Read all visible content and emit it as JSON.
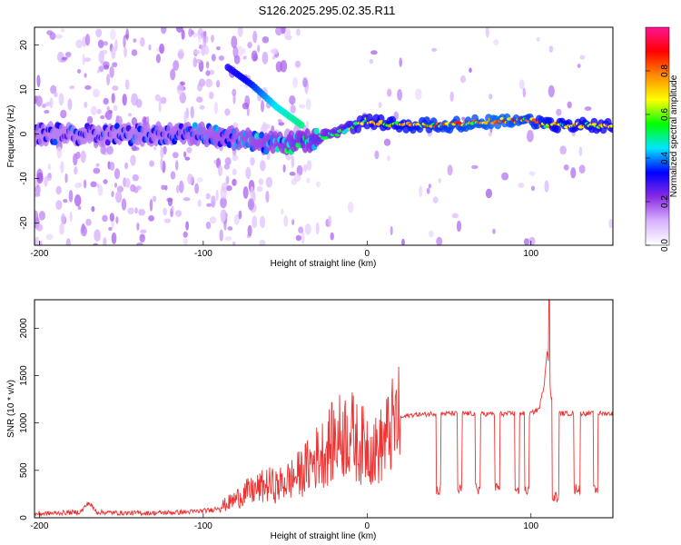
{
  "title": "S126.2025.295.02.35.R11",
  "chart_data": [
    {
      "type": "heatmap",
      "xlabel": "Height of straight line (km)",
      "ylabel": "Frequency (Hz)",
      "xlim": [
        -203,
        150
      ],
      "ylim": [
        -25,
        24
      ],
      "xticks": [
        -200,
        -100,
        0,
        100
      ],
      "xtick_labels": [
        "-200",
        "-100",
        "0",
        "100"
      ],
      "yticks": [
        -20,
        -10,
        0,
        10,
        20
      ],
      "ytick_labels": [
        "-20",
        "-10",
        "0",
        "10",
        "20"
      ],
      "colorbar": {
        "label": "Normalized spectral amplitude",
        "range": [
          0.0,
          1.0
        ],
        "ticks": [
          0.0,
          0.2,
          0.4,
          0.6,
          0.8
        ],
        "tick_labels": [
          "0.0",
          "0.2",
          "0.4",
          "0.6",
          "0.8"
        ],
        "colors": [
          "#ffffff",
          "#d9b3ff",
          "#8a2be2",
          "#0000ff",
          "#00e5ff",
          "#00ff00",
          "#ffff00",
          "#ff8c00",
          "#ff0000",
          "#ff1493"
        ]
      },
      "ridge": {
        "x": [
          -200,
          -150,
          -100,
          -60,
          -40,
          -20,
          0,
          20,
          50,
          80,
          100,
          110,
          150
        ],
        "y": [
          0,
          0,
          0,
          -2,
          -2,
          0,
          3,
          2,
          2,
          3,
          3,
          2,
          2
        ],
        "amplitude": [
          0.35,
          0.35,
          0.4,
          0.45,
          0.5,
          0.55,
          0.7,
          0.75,
          0.8,
          0.85,
          0.8,
          0.75,
          0.7
        ]
      },
      "secondary_branch": {
        "x": [
          -85,
          -70,
          -55,
          -40
        ],
        "y": [
          15,
          11,
          6,
          2
        ],
        "amplitude": [
          0.3,
          0.35,
          0.45,
          0.5
        ]
      }
    },
    {
      "type": "line",
      "xlabel": "Height of straight line (km)",
      "ylabel": "SNR (10 * v/v)",
      "xlim": [
        -203,
        150
      ],
      "ylim": [
        0,
        2300
      ],
      "xticks": [
        -200,
        -100,
        0,
        100
      ],
      "xtick_labels": [
        "-200",
        "-100",
        "0",
        "100"
      ],
      "yticks": [
        0,
        500,
        1000,
        1500,
        2000
      ],
      "ytick_labels": [
        "0",
        "500",
        "1000",
        "1500",
        "2000"
      ],
      "color": "#ee3333",
      "series": [
        {
          "name": "SNR",
          "x": [
            -203,
            -190,
            -175,
            -170,
            -165,
            -150,
            -130,
            -110,
            -95,
            -85,
            -80,
            -75,
            -70,
            -65,
            -60,
            -55,
            -50,
            -45,
            -40,
            -35,
            -30,
            -25,
            -20,
            -15,
            -10,
            -5,
            0,
            5,
            10,
            15,
            20,
            25,
            30,
            35,
            40,
            50,
            60,
            70,
            80,
            90,
            100,
            105,
            108,
            110,
            112,
            115,
            120,
            130,
            140,
            150
          ],
          "y": [
            40,
            50,
            60,
            160,
            60,
            50,
            50,
            60,
            80,
            150,
            200,
            260,
            280,
            320,
            350,
            330,
            380,
            420,
            480,
            560,
            650,
            720,
            820,
            880,
            900,
            760,
            780,
            700,
            790,
            950,
            1050,
            1080,
            1090,
            1090,
            1100,
            1100,
            1100,
            1095,
            1095,
            1100,
            1100,
            1150,
            1400,
            1800,
            1300,
            1100,
            1100,
            1100,
            1100,
            1100
          ]
        }
      ],
      "dropouts": [
        {
          "x0": 42,
          "x1": 45,
          "low": 300
        },
        {
          "x0": 55,
          "x1": 58,
          "low": 300
        },
        {
          "x0": 66,
          "x1": 69,
          "low": 300
        },
        {
          "x0": 78,
          "x1": 81,
          "low": 310
        },
        {
          "x0": 90,
          "x1": 93,
          "low": 300
        },
        {
          "x0": 96,
          "x1": 99,
          "low": 300
        },
        {
          "x0": 113,
          "x1": 117,
          "low": 220
        },
        {
          "x0": 126,
          "x1": 130,
          "low": 300
        },
        {
          "x0": 138,
          "x1": 141,
          "low": 280
        }
      ],
      "spike": {
        "x": 111,
        "y": 2300
      }
    }
  ]
}
